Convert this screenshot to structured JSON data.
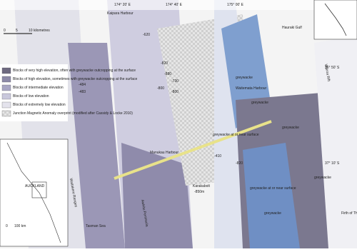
{
  "coordinates": {
    "top": [
      "174° 20' E",
      "174° 40' E",
      "175° 00' E"
    ],
    "right": [
      "36° 50' S",
      "37° 10' S"
    ]
  },
  "places": [
    "Kaipara Harbour",
    "Hauraki Gulf",
    "Waitemata Harbour",
    "Manukau Harbour",
    "Tasman Sea",
    "Firth of Thames",
    "Waitakere Ranges",
    "Awhitu Peninsula",
    "Wairoa Rift",
    "Karakabolt",
    "-850m"
  ],
  "rock_labels": [
    "greywacke",
    "greywacke",
    "greywacke",
    "greywacke",
    "greywacke at or near surface",
    "greywacke at or near surface",
    "greywacke"
  ],
  "depths": [
    "-880",
    "-730",
    "-800",
    "-800",
    "-484",
    "-483",
    "-820",
    "-620",
    "-410",
    "-820"
  ],
  "legend": [
    "Blocks of very high elevation, often with greywacke outcropping at the surface",
    "Blocks of high elevation, sometimes with greywacke outcropping at the surface",
    "Blocks of intermediate elevation",
    "Blocks of low elevation",
    "Blocks of extremely low elevation",
    "Junction Magnetic Anomaly overprint (modified after Cassidy & Locke 2010)"
  ],
  "scale": {
    "ticks": [
      "0",
      "5",
      "10 kilometres"
    ]
  },
  "inset": {
    "city": "AUCKLAND",
    "ticks": [
      "0",
      "100 km"
    ]
  }
}
